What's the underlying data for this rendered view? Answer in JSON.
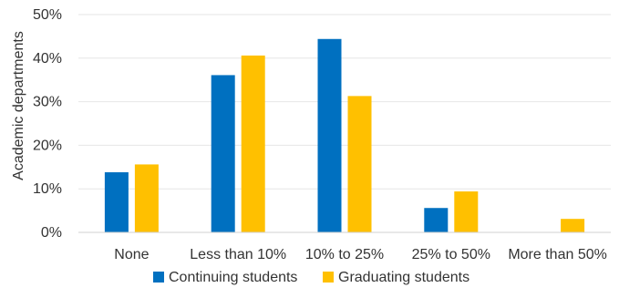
{
  "chart_data": {
    "type": "bar",
    "categories": [
      "None",
      "Less than 10%",
      "10% to 25%",
      "25% to 50%",
      "More than 50%"
    ],
    "series": [
      {
        "name": "Continuing students",
        "values": [
          13.8,
          36.1,
          44.4,
          5.6,
          0
        ],
        "color": "#0070C0"
      },
      {
        "name": "Graduating students",
        "values": [
          15.6,
          40.6,
          31.3,
          9.4,
          3.1
        ],
        "color": "#FFC000"
      }
    ],
    "ylabel": "Academic departments",
    "ylim": [
      0,
      50
    ],
    "yticks": [
      "0%",
      "10%",
      "20%",
      "30%",
      "40%",
      "50%"
    ],
    "grid": true,
    "legend_position": "bottom"
  }
}
